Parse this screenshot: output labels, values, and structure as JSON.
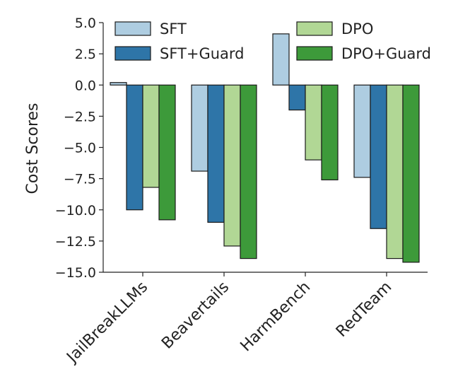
{
  "chart_data": {
    "type": "bar",
    "categories": [
      "JailBreakLLMs",
      "Beavertails",
      "HarmBench",
      "RedTeam"
    ],
    "series": [
      {
        "name": "SFT",
        "color": "#aecde1",
        "values": [
          0.2,
          -6.9,
          4.1,
          -7.4
        ]
      },
      {
        "name": "SFT+Guard",
        "color": "#2e75a8",
        "values": [
          -10.0,
          -11.0,
          -2.0,
          -11.5
        ]
      },
      {
        "name": "DPO",
        "color": "#b1d795",
        "values": [
          -8.2,
          -12.9,
          -6.0,
          -13.9
        ]
      },
      {
        "name": "DPO+Guard",
        "color": "#3d9a3a",
        "values": [
          -10.8,
          -13.9,
          -7.6,
          -14.2
        ]
      }
    ],
    "ylabel": "Cost Scores",
    "xlabel": "",
    "ylim": [
      -15.0,
      5.0
    ],
    "yticks": [
      "5.0",
      "2.5",
      "0.0",
      "−2.5",
      "−5.0",
      "−7.5",
      "−10.0",
      "−12.5",
      "−15.0"
    ],
    "ytick_values": [
      5.0,
      2.5,
      0.0,
      -2.5,
      -5.0,
      -7.5,
      -10.0,
      -12.5,
      -15.0
    ],
    "legend": {
      "placement": "top",
      "columns": 2
    },
    "grid": false
  }
}
